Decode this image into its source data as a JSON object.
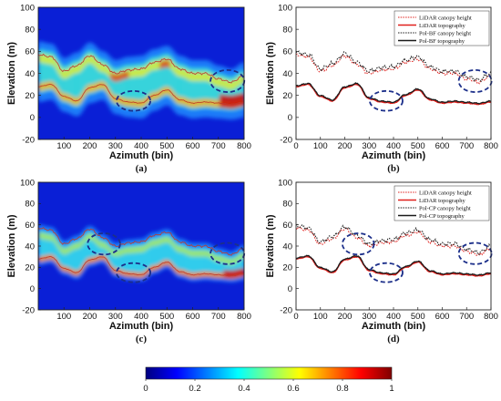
{
  "colors": {
    "lidar": "#e0201c",
    "pol": "#1a1a1a",
    "ellipse": "#1c2f8a",
    "jet": [
      "#00007f",
      "#0000ff",
      "#007fff",
      "#00ffff",
      "#7fff7f",
      "#ffff00",
      "#ff7f00",
      "#ff0000",
      "#7f0000"
    ]
  },
  "chart_data": [
    {
      "id": "a",
      "type": "heatmap",
      "caption": "(a)",
      "xlabel": "Azimuth (bin)",
      "ylabel": "Elevation (m)",
      "xlim": [
        0,
        800
      ],
      "ylim": [
        -20,
        100
      ],
      "xticks": [
        "100",
        "200",
        "300",
        "400",
        "500",
        "600",
        "700",
        "800"
      ],
      "yticks": [
        "-20",
        "0",
        "20",
        "40",
        "60",
        "80",
        "100"
      ],
      "overlays": [
        "LiDAR canopy height",
        "LiDAR topography"
      ],
      "ellipses": [
        {
          "cx": 370,
          "cy": 15,
          "rx": 75,
          "ry": 9
        },
        {
          "cx": 735,
          "cy": 33,
          "rx": 75,
          "ry": 10
        }
      ]
    },
    {
      "id": "b",
      "type": "line",
      "caption": "(b)",
      "xlabel": "Azimuth (bin)",
      "ylabel": "Elevation (m)",
      "xlim": [
        0,
        800
      ],
      "ylim": [
        -20,
        100
      ],
      "xticks": [
        "0",
        "100",
        "200",
        "300",
        "400",
        "500",
        "600",
        "700",
        "800"
      ],
      "yticks": [
        "-20",
        "0",
        "20",
        "40",
        "60",
        "80",
        "100"
      ],
      "legend": "top-right",
      "series": [
        {
          "name": "LiDAR canopy height",
          "style": "red-dotted"
        },
        {
          "name": "LiDAR topography",
          "style": "red-solid"
        },
        {
          "name": "Pol-BF canopy height",
          "style": "black-dotted"
        },
        {
          "name": "Pol-BF topography",
          "style": "black-solid"
        }
      ],
      "ellipses": [
        {
          "cx": 370,
          "cy": 15,
          "rx": 75,
          "ry": 9
        },
        {
          "cx": 735,
          "cy": 33,
          "rx": 75,
          "ry": 10
        }
      ]
    },
    {
      "id": "c",
      "type": "heatmap",
      "caption": "(c)",
      "xlabel": "Azimuth (bin)",
      "ylabel": "Elevation (m)",
      "xlim": [
        0,
        800
      ],
      "ylim": [
        -20,
        100
      ],
      "xticks": [
        "100",
        "200",
        "300",
        "400",
        "500",
        "600",
        "700",
        "800"
      ],
      "yticks": [
        "-20",
        "0",
        "20",
        "40",
        "60",
        "80",
        "100"
      ],
      "overlays": [
        "LiDAR canopy height",
        "LiDAR topography"
      ],
      "ellipses": [
        {
          "cx": 255,
          "cy": 42,
          "rx": 70,
          "ry": 10
        },
        {
          "cx": 370,
          "cy": 15,
          "rx": 75,
          "ry": 9
        },
        {
          "cx": 735,
          "cy": 33,
          "rx": 75,
          "ry": 10
        }
      ]
    },
    {
      "id": "d",
      "type": "line",
      "caption": "(d)",
      "xlabel": "Azimuth (bin)",
      "ylabel": "Elevation (m)",
      "xlim": [
        0,
        800
      ],
      "ylim": [
        -20,
        100
      ],
      "xticks": [
        "0",
        "100",
        "200",
        "300",
        "400",
        "500",
        "600",
        "700",
        "800"
      ],
      "yticks": [
        "-20",
        "0",
        "20",
        "40",
        "60",
        "80",
        "100"
      ],
      "legend": "top-right",
      "series": [
        {
          "name": "LiDAR canopy height",
          "style": "red-dotted"
        },
        {
          "name": "LiDAR topography",
          "style": "red-solid"
        },
        {
          "name": "Pol-CP canopy height",
          "style": "black-dotted"
        },
        {
          "name": "Pol-CP topography",
          "style": "black-solid"
        }
      ],
      "ellipses": [
        {
          "cx": 255,
          "cy": 42,
          "rx": 70,
          "ry": 10
        },
        {
          "cx": 370,
          "cy": 15,
          "rx": 75,
          "ry": 9
        },
        {
          "cx": 735,
          "cy": 33,
          "rx": 75,
          "ry": 10
        }
      ]
    }
  ],
  "profiles": {
    "x": [
      0,
      50,
      100,
      150,
      200,
      250,
      300,
      350,
      400,
      450,
      500,
      550,
      600,
      650,
      700,
      750,
      800
    ],
    "canopy": [
      57,
      55,
      42,
      47,
      56,
      48,
      40,
      43,
      44,
      50,
      53,
      44,
      40,
      40,
      35,
      32,
      38
    ],
    "topo": [
      28,
      30,
      19,
      15,
      27,
      30,
      17,
      14,
      13,
      20,
      25,
      16,
      13,
      14,
      13,
      12,
      14
    ]
  },
  "colorbar": {
    "range": [
      0,
      1
    ],
    "ticks": [
      "0",
      "0.2",
      "0.4",
      "0.6",
      "0.8",
      "1"
    ]
  }
}
